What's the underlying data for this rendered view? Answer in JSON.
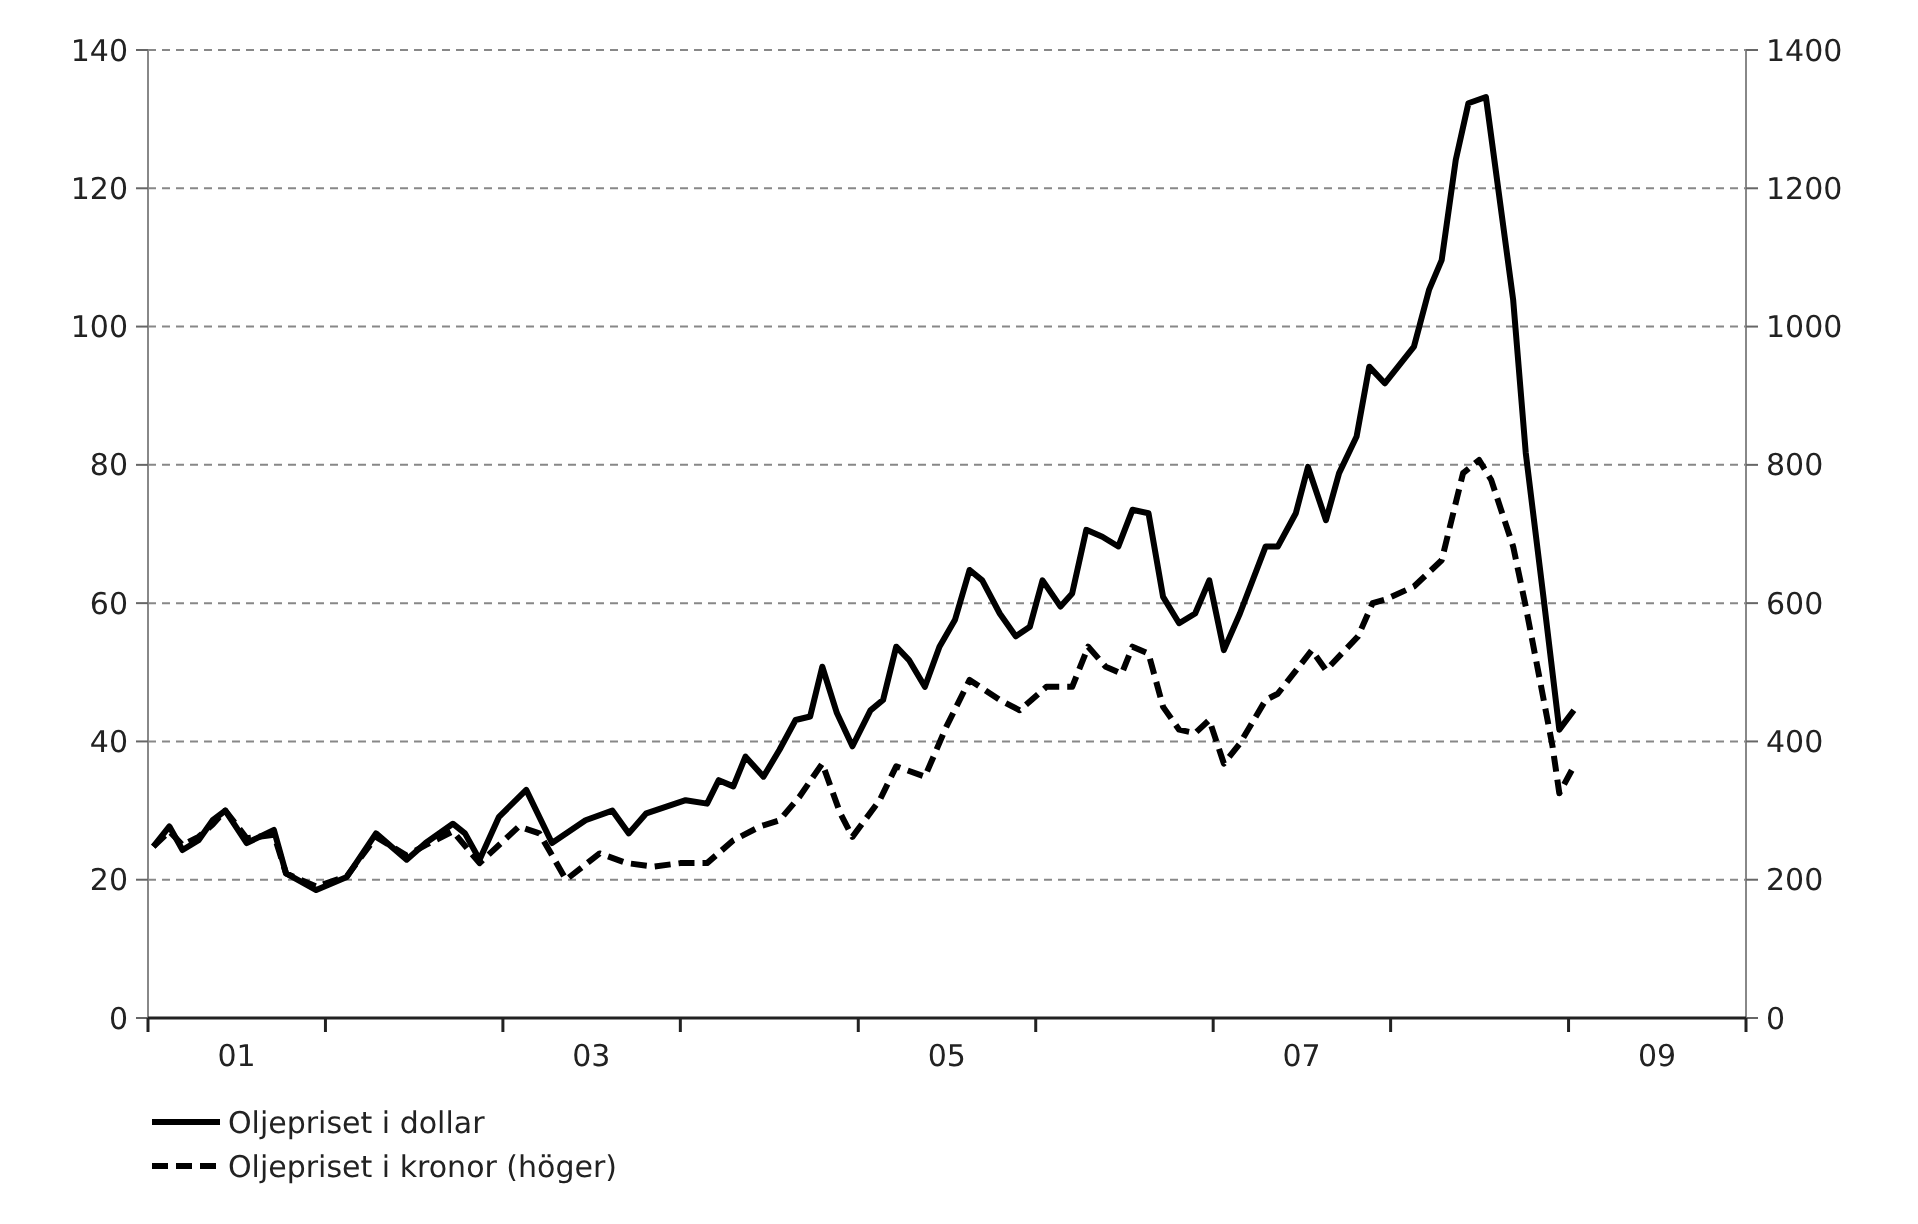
{
  "chart_data": {
    "type": "line",
    "xlim": [
      "2001-01-01",
      "2010-01-01"
    ],
    "xticks": [
      {
        "value": "2001-01-01",
        "label": null
      },
      {
        "value": "2001-07-02",
        "label": "01"
      },
      {
        "value": "2002-01-01",
        "label": null
      },
      {
        "value": "2003-01-01",
        "label": null
      },
      {
        "value": "2003-07-02",
        "label": "03"
      },
      {
        "value": "2004-01-01",
        "label": null
      },
      {
        "value": "2005-01-01",
        "label": null
      },
      {
        "value": "2005-07-02",
        "label": "05"
      },
      {
        "value": "2006-01-01",
        "label": null
      },
      {
        "value": "2007-01-01",
        "label": null
      },
      {
        "value": "2007-07-02",
        "label": "07"
      },
      {
        "value": "2008-01-01",
        "label": null
      },
      {
        "value": "2009-01-01",
        "label": null
      },
      {
        "value": "2009-07-02",
        "label": "09"
      },
      {
        "value": "2010-01-01",
        "label": null
      }
    ],
    "ylim": [
      0,
      140
    ],
    "yticks": [
      0,
      20,
      40,
      60,
      80,
      100,
      120,
      140
    ],
    "y2lim": [
      0,
      1400
    ],
    "y2ticks": [
      0,
      200,
      400,
      600,
      800,
      1000,
      1200,
      1400
    ],
    "grid": "y",
    "legend": "bottom left",
    "series": [
      {
        "name": "Oljepriset i dollar",
        "color": "#000000",
        "line_style": "solid",
        "x": [
          "2001-01-12",
          "2001-02-14",
          "2001-03-13",
          "2001-04-15",
          "2001-05-14",
          "2001-06-09",
          "2001-07-23",
          "2001-09-17",
          "2001-10-12",
          "2001-12-13",
          "2002-02-14",
          "2002-04-15",
          "2002-06-17",
          "2002-07-26",
          "2002-09-20",
          "2002-10-15",
          "2002-11-14",
          "2002-12-24",
          "2003-02-18",
          "2003-04-12",
          "2003-06-20",
          "2003-08-14",
          "2003-09-17",
          "2003-10-23",
          "2004-01-12",
          "2004-02-25",
          "2004-03-20",
          "2004-04-19",
          "2004-05-14",
          "2004-06-20",
          "2004-07-23",
          "2004-08-25",
          "2004-09-24",
          "2004-10-19",
          "2004-11-18",
          "2004-12-20",
          "2005-01-26",
          "2005-02-21",
          "2005-03-20",
          "2005-04-15",
          "2005-05-18",
          "2005-06-17",
          "2005-07-19",
          "2005-08-18",
          "2005-09-13",
          "2005-10-19",
          "2005-11-21",
          "2005-12-20",
          "2006-01-15",
          "2006-02-21",
          "2006-03-17",
          "2006-04-15",
          "2006-05-18",
          "2006-06-20",
          "2006-07-19",
          "2006-08-21",
          "2006-09-20",
          "2006-10-23",
          "2006-11-25",
          "2006-12-24",
          "2007-01-23",
          "2007-02-25",
          "2007-04-19",
          "2007-05-14",
          "2007-06-20",
          "2007-07-15",
          "2007-08-21",
          "2007-09-17",
          "2007-10-23",
          "2007-11-18",
          "2007-12-20",
          "2008-02-18",
          "2008-03-20",
          "2008-04-15",
          "2008-05-14",
          "2008-06-09",
          "2008-07-15",
          "2008-09-09",
          "2008-10-05",
          "2008-11-11",
          "2008-12-13",
          "2009-01-12"
        ],
        "values": [
          24.8,
          27.7,
          24.3,
          25.7,
          28.6,
          30,
          25.3,
          27.2,
          20.9,
          18.5,
          20.4,
          26.7,
          22.9,
          25.3,
          28.1,
          26.7,
          22.9,
          29.1,
          33,
          25.3,
          28.6,
          30,
          26.7,
          29.6,
          31.5,
          31,
          34.4,
          33.5,
          37.8,
          34.9,
          38.8,
          43.1,
          43.6,
          50.8,
          44.1,
          39.3,
          44.5,
          46,
          53.7,
          51.8,
          47.9,
          53.7,
          57.6,
          64.8,
          63.3,
          58.5,
          55.2,
          56.6,
          63.3,
          59.5,
          61.4,
          70.6,
          69.6,
          68.2,
          73.5,
          73,
          60.9,
          57.1,
          58.5,
          63.3,
          53.2,
          58.5,
          68.2,
          68.2,
          73,
          79.7,
          72,
          78.8,
          84.1,
          94.2,
          91.8,
          97.1,
          105.3,
          109.6,
          124.1,
          132.3,
          133.2,
          103.9,
          81.7,
          60.5,
          41.7,
          44.5
        ]
      },
      {
        "name": "Oljepriset i kronor (höger)",
        "color": "#000000",
        "line_style": "dashed",
        "axis": "y2",
        "x": [
          "2001-01-12",
          "2001-02-14",
          "2001-03-13",
          "2001-04-15",
          "2001-05-14",
          "2001-06-09",
          "2001-07-23",
          "2001-09-17",
          "2001-10-12",
          "2001-12-13",
          "2002-02-14",
          "2002-04-15",
          "2002-06-17",
          "2002-07-26",
          "2002-09-20",
          "2002-11-14",
          "2003-02-03",
          "2003-03-17",
          "2003-05-11",
          "2003-07-19",
          "2003-09-13",
          "2003-11-07",
          "2004-01-01",
          "2004-02-25",
          "2004-04-19",
          "2004-06-13",
          "2004-07-23",
          "2004-09-02",
          "2004-10-19",
          "2004-11-25",
          "2004-12-20",
          "2005-02-14",
          "2005-03-20",
          "2005-05-18",
          "2005-07-01",
          "2005-08-18",
          "2005-10-19",
          "2005-11-29",
          "2006-01-23",
          "2006-03-17",
          "2006-04-19",
          "2006-05-25",
          "2006-06-27",
          "2006-07-19",
          "2006-08-21",
          "2006-09-20",
          "2006-10-23",
          "2006-11-25",
          "2006-12-24",
          "2007-01-23",
          "2007-02-25",
          "2007-04-19",
          "2007-05-14",
          "2007-07-23",
          "2007-08-21",
          "2007-10-26",
          "2007-11-25",
          "2007-12-20",
          "2008-02-18",
          "2008-04-15",
          "2008-05-29",
          "2008-07-01",
          "2008-07-26",
          "2008-09-09",
          "2008-10-05",
          "2008-11-03",
          "2008-11-29",
          "2008-12-13",
          "2009-01-15"
        ],
        "values": [
          248,
          270,
          250,
          262,
          280,
          300,
          260,
          265,
          209,
          190,
          205,
          262,
          235,
          250,
          270,
          224,
          277,
          267,
          200,
          238,
          224,
          219,
          224,
          224,
          257,
          277,
          286,
          320,
          368,
          296,
          262,
          315,
          364,
          349,
          421,
          489,
          460,
          445,
          479,
          479,
          537,
          508,
          498,
          537,
          527,
          450,
          417,
          412,
          431,
          368,
          397,
          460,
          469,
          532,
          503,
          552,
          600,
          605,
          624,
          662,
          788,
          807,
          778,
          682,
          595,
          489,
          393,
          325,
          368
        ]
      }
    ]
  }
}
